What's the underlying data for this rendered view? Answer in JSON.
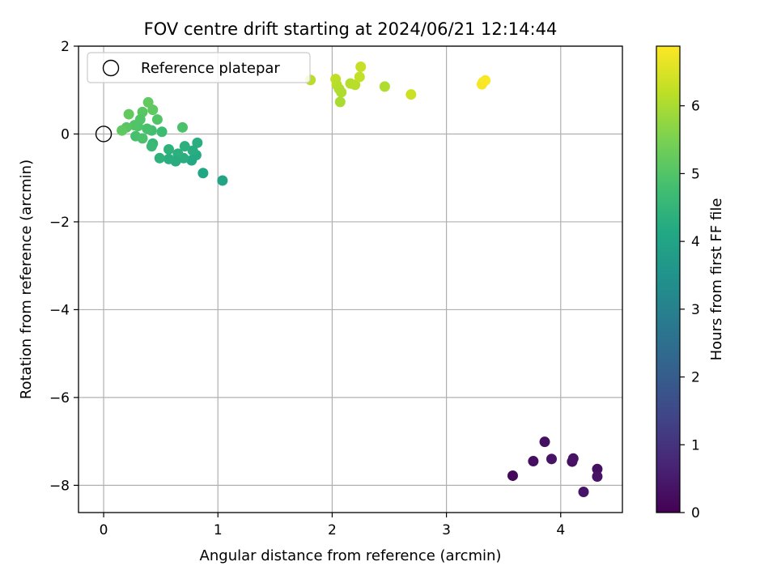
{
  "chart_data": {
    "type": "scatter",
    "title": "FOV centre drift starting at 2024/06/21 12:14:44",
    "xlabel": "Angular distance from reference (arcmin)",
    "ylabel": "Rotation from reference (arcmin)",
    "xlim": [
      -0.22,
      4.54
    ],
    "ylim": [
      -8.62,
      2.0
    ],
    "xticks": [
      0,
      1,
      2,
      3,
      4
    ],
    "xtick_labels": [
      "0",
      "1",
      "2",
      "3",
      "4"
    ],
    "yticks": [
      2,
      0,
      -2,
      -4,
      -6,
      -8
    ],
    "ytick_labels": [
      "2",
      "0",
      "−2",
      "−4",
      "−6",
      "−8"
    ],
    "grid": true,
    "legend": {
      "placement": "top-left",
      "entries": [
        "Reference platepar"
      ]
    },
    "colorbar": {
      "label": "Hours from first FF file",
      "colormap": "viridis",
      "range": [
        0,
        6.88
      ],
      "ticks": [
        0,
        1,
        2,
        3,
        4,
        5,
        6
      ],
      "tick_labels": [
        "0",
        "1",
        "2",
        "3",
        "4",
        "5",
        "6"
      ]
    },
    "reference_point": {
      "name": "Reference platepar",
      "x": 0,
      "y": 0
    },
    "points": [
      {
        "x": 3.58,
        "y": -7.78,
        "c": 0.15
      },
      {
        "x": 3.76,
        "y": -7.45,
        "c": 0.25
      },
      {
        "x": 3.86,
        "y": -7.01,
        "c": 0.3
      },
      {
        "x": 3.92,
        "y": -7.4,
        "c": 0.35
      },
      {
        "x": 4.1,
        "y": -7.46,
        "c": 0.3
      },
      {
        "x": 4.11,
        "y": -7.39,
        "c": 0.35
      },
      {
        "x": 4.2,
        "y": -8.15,
        "c": 0.4
      },
      {
        "x": 4.32,
        "y": -7.63,
        "c": 0.3
      },
      {
        "x": 4.32,
        "y": -7.8,
        "c": 0.35
      },
      {
        "x": 1.04,
        "y": -1.06,
        "c": 4.0
      },
      {
        "x": 0.87,
        "y": -0.89,
        "c": 4.1
      },
      {
        "x": 0.82,
        "y": -0.2,
        "c": 4.3
      },
      {
        "x": 0.81,
        "y": -0.48,
        "c": 4.2
      },
      {
        "x": 0.78,
        "y": -0.38,
        "c": 4.25
      },
      {
        "x": 0.77,
        "y": -0.6,
        "c": 4.15
      },
      {
        "x": 0.71,
        "y": -0.28,
        "c": 4.35
      },
      {
        "x": 0.7,
        "y": -0.55,
        "c": 4.3
      },
      {
        "x": 0.65,
        "y": -0.45,
        "c": 4.35
      },
      {
        "x": 0.63,
        "y": -0.62,
        "c": 4.25
      },
      {
        "x": 0.57,
        "y": -0.35,
        "c": 4.4
      },
      {
        "x": 0.57,
        "y": -0.57,
        "c": 4.3
      },
      {
        "x": 0.49,
        "y": -0.55,
        "c": 4.4
      },
      {
        "x": 0.43,
        "y": -0.22,
        "c": 4.55
      },
      {
        "x": 0.42,
        "y": -0.28,
        "c": 4.6
      },
      {
        "x": 0.51,
        "y": 0.05,
        "c": 4.7
      },
      {
        "x": 0.69,
        "y": 0.15,
        "c": 4.9
      },
      {
        "x": 0.47,
        "y": 0.33,
        "c": 5.0
      },
      {
        "x": 0.43,
        "y": 0.55,
        "c": 5.15
      },
      {
        "x": 0.39,
        "y": 0.72,
        "c": 5.2
      },
      {
        "x": 0.42,
        "y": 0.08,
        "c": 4.8
      },
      {
        "x": 0.38,
        "y": 0.12,
        "c": 4.85
      },
      {
        "x": 0.34,
        "y": 0.5,
        "c": 5.1
      },
      {
        "x": 0.32,
        "y": 0.33,
        "c": 5.0
      },
      {
        "x": 0.3,
        "y": 0.18,
        "c": 4.95
      },
      {
        "x": 0.28,
        "y": -0.05,
        "c": 4.85
      },
      {
        "x": 0.34,
        "y": -0.1,
        "c": 4.9
      },
      {
        "x": 0.27,
        "y": 0.2,
        "c": 5.0
      },
      {
        "x": 0.22,
        "y": 0.45,
        "c": 5.2
      },
      {
        "x": 0.2,
        "y": 0.15,
        "c": 5.1
      },
      {
        "x": 0.16,
        "y": 0.08,
        "c": 5.15
      },
      {
        "x": 1.81,
        "y": 1.23,
        "c": 6.15
      },
      {
        "x": 2.03,
        "y": 1.25,
        "c": 6.2
      },
      {
        "x": 2.04,
        "y": 1.12,
        "c": 6.15
      },
      {
        "x": 2.06,
        "y": 1.03,
        "c": 6.1
      },
      {
        "x": 2.08,
        "y": 0.95,
        "c": 6.05
      },
      {
        "x": 2.07,
        "y": 0.73,
        "c": 6.0
      },
      {
        "x": 2.16,
        "y": 1.15,
        "c": 6.1
      },
      {
        "x": 2.2,
        "y": 1.12,
        "c": 6.15
      },
      {
        "x": 2.24,
        "y": 1.3,
        "c": 6.25
      },
      {
        "x": 2.25,
        "y": 1.53,
        "c": 6.3
      },
      {
        "x": 2.46,
        "y": 1.08,
        "c": 6.05
      },
      {
        "x": 2.69,
        "y": 0.9,
        "c": 6.35
      },
      {
        "x": 3.31,
        "y": 1.13,
        "c": 6.8
      },
      {
        "x": 3.32,
        "y": 1.18,
        "c": 6.82
      },
      {
        "x": 3.34,
        "y": 1.22,
        "c": 6.85
      }
    ]
  }
}
